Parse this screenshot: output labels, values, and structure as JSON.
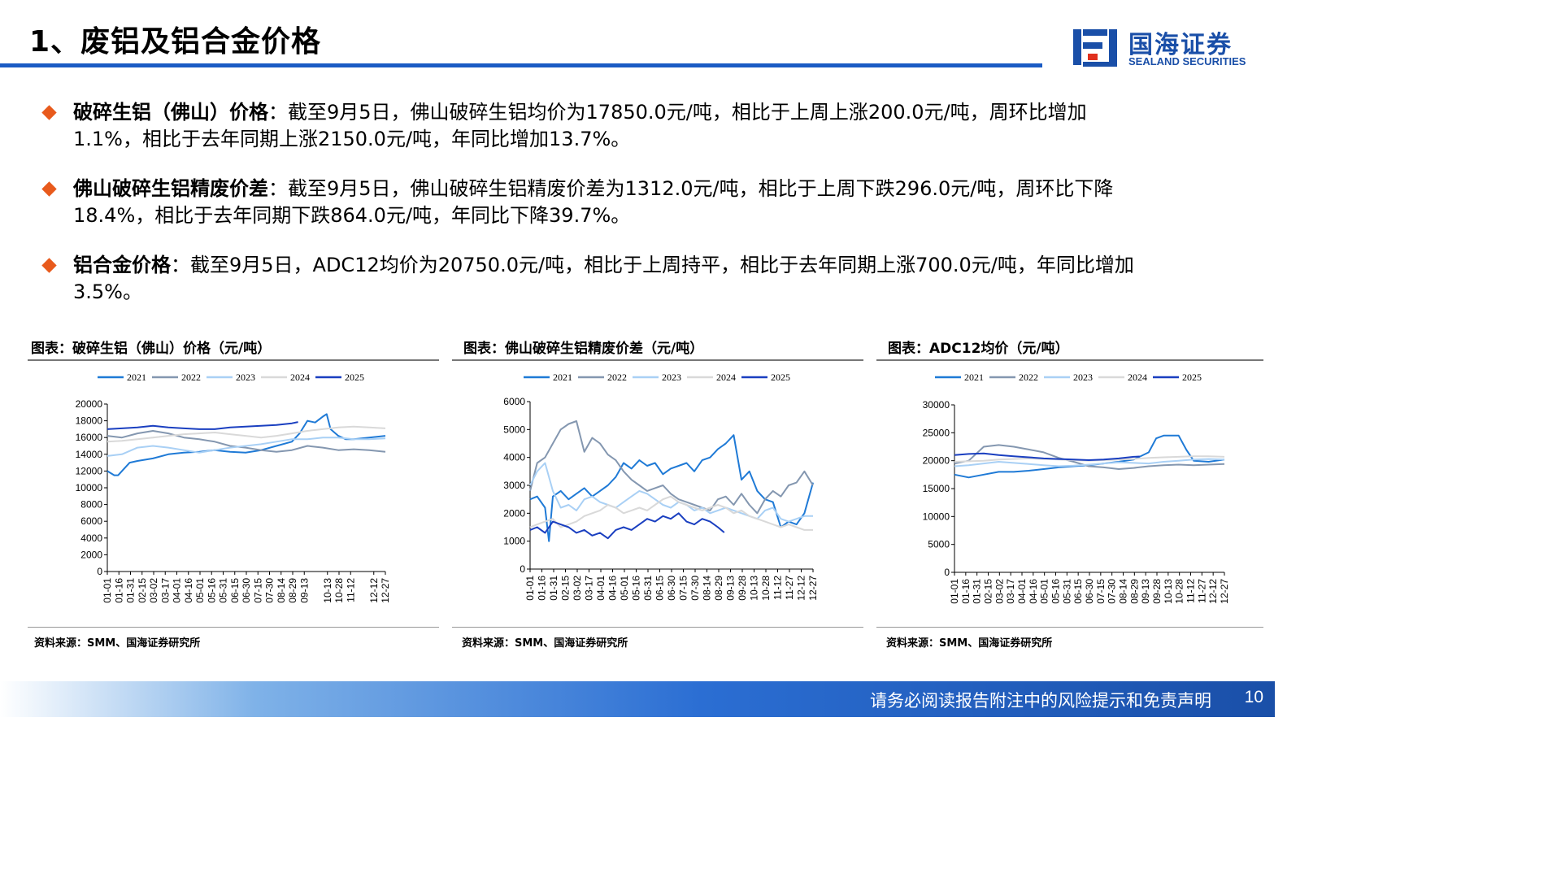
{
  "page": {
    "title": "1、废铝及铝合金价格",
    "logo_cn": "国海证券",
    "logo_en": "SEALAND SECURITIES",
    "footer_text": "请务必阅读报告附注中的风险提示和免责声明",
    "page_number": "10"
  },
  "bullets": [
    {
      "head": "破碎生铝（佛山）价格",
      "body": "：截至9月5日，佛山破碎生铝均价为17850.0元/吨，相比于上周上涨200.0元/吨，周环比增加1.1%，相比于去年同期上涨2150.0元/吨，年同比增加13.7%。"
    },
    {
      "head": "佛山破碎生铝精废价差",
      "body": "：截至9月5日，佛山破碎生铝精废价差为1312.0元/吨，相比于上周下跌296.0元/吨，周环比下降18.4%，相比于去年同期下跌864.0元/吨，年同比下降39.7%。"
    },
    {
      "head": "铝合金价格",
      "body": "：截至9月5日，ADC12均价为20750.0元/吨，相比于上周持平，相比于去年同期上涨700.0元/吨，年同比增加3.5%。"
    }
  ],
  "colors": {
    "2021": "#1f7ad6",
    "2022": "#8497b0",
    "2023": "#a9d0f5",
    "2024": "#d9d9d9",
    "2025": "#1a3fc0"
  },
  "x_ticks": [
    "01-01",
    "01-16",
    "01-31",
    "02-15",
    "03-02",
    "03-17",
    "04-01",
    "04-16",
    "05-01",
    "05-16",
    "05-31",
    "06-15",
    "06-30",
    "07-15",
    "07-30",
    "08-14",
    "08-29",
    "09-13",
    "09-28",
    "10-13",
    "10-28",
    "11-12",
    "11-27",
    "12-12",
    "12-27"
  ],
  "chart_data": [
    {
      "type": "line",
      "title": "图表：破碎生铝（佛山）价格（元/吨）",
      "source": "资料来源：SMM、国海证券研究所",
      "ylim": [
        0,
        20000
      ],
      "yticks": [
        "0",
        "2000",
        "4000",
        "6000",
        "8000",
        "10000",
        "12000",
        "14000",
        "16000",
        "18000",
        "20000"
      ],
      "x_tick_set": [
        "01-01",
        "01-16",
        "01-31",
        "02-15",
        "03-02",
        "03-17",
        "04-01",
        "04-16",
        "05-01",
        "05-16",
        "05-31",
        "06-15",
        "06-30",
        "07-15",
        "07-30",
        "08-14",
        "08-29",
        "09-13",
        "10-13",
        "10-28",
        "11-12",
        "12-12",
        "12-27"
      ],
      "x_domain": [
        1,
        361
      ],
      "series": [
        {
          "name": "2021",
          "x": [
            1,
            10,
            15,
            30,
            40,
            60,
            80,
            100,
            120,
            140,
            160,
            180,
            200,
            220,
            240,
            250,
            260,
            270,
            280,
            285,
            290,
            300,
            310,
            320,
            340,
            361
          ],
          "y": [
            12000,
            11500,
            11500,
            13000,
            13200,
            13500,
            14000,
            14200,
            14300,
            14500,
            14300,
            14200,
            14500,
            15000,
            15500,
            16500,
            18000,
            17800,
            18500,
            18800,
            17000,
            16200,
            15800,
            15800,
            16000,
            16200
          ]
        },
        {
          "name": "2022",
          "x": [
            1,
            20,
            40,
            60,
            80,
            100,
            120,
            140,
            160,
            180,
            200,
            220,
            240,
            260,
            280,
            300,
            320,
            340,
            361
          ],
          "y": [
            16200,
            16000,
            16500,
            16800,
            16500,
            16000,
            15800,
            15500,
            15000,
            14800,
            14500,
            14300,
            14500,
            15000,
            14800,
            14500,
            14600,
            14500,
            14300
          ]
        },
        {
          "name": "2023",
          "x": [
            1,
            20,
            40,
            60,
            80,
            100,
            120,
            140,
            160,
            180,
            200,
            220,
            240,
            260,
            280,
            300,
            320,
            340,
            361
          ],
          "y": [
            13800,
            14000,
            14800,
            15000,
            14800,
            14500,
            14200,
            14500,
            14800,
            15000,
            15200,
            15500,
            15800,
            15800,
            16000,
            16000,
            15800,
            15800,
            15900
          ]
        },
        {
          "name": "2024",
          "x": [
            1,
            20,
            40,
            60,
            80,
            100,
            120,
            140,
            160,
            180,
            200,
            220,
            240,
            260,
            280,
            300,
            320,
            340,
            361
          ],
          "y": [
            15500,
            15600,
            15800,
            16000,
            16200,
            16400,
            16500,
            16600,
            16400,
            16200,
            16000,
            16200,
            16500,
            16800,
            17000,
            17200,
            17300,
            17200,
            17100
          ]
        },
        {
          "name": "2025",
          "x": [
            1,
            20,
            40,
            60,
            80,
            100,
            120,
            140,
            160,
            180,
            200,
            220,
            240,
            248
          ],
          "y": [
            17000,
            17100,
            17200,
            17400,
            17200,
            17100,
            17000,
            17000,
            17200,
            17300,
            17400,
            17500,
            17700,
            17850
          ]
        }
      ]
    },
    {
      "type": "line",
      "title": "图表：佛山破碎生铝精废价差（元/吨）",
      "source": "资料来源：SMM、国海证券研究所",
      "ylim": [
        0,
        6000
      ],
      "yticks": [
        "0",
        "1000",
        "2000",
        "3000",
        "4000",
        "5000",
        "6000"
      ],
      "x_tick_set": [
        "01-01",
        "01-16",
        "01-31",
        "02-15",
        "03-02",
        "03-17",
        "04-01",
        "04-16",
        "05-01",
        "05-16",
        "05-31",
        "06-15",
        "06-30",
        "07-15",
        "07-30",
        "08-14",
        "08-29",
        "09-13",
        "09-28",
        "10-13",
        "10-28",
        "11-12",
        "11-27",
        "12-12",
        "12-27"
      ],
      "x_domain": [
        1,
        361
      ],
      "series": [
        {
          "name": "2021",
          "x": [
            1,
            10,
            20,
            25,
            30,
            40,
            50,
            60,
            70,
            80,
            90,
            100,
            110,
            120,
            130,
            140,
            150,
            160,
            170,
            180,
            190,
            200,
            210,
            220,
            230,
            240,
            250,
            260,
            270,
            280,
            290,
            300,
            310,
            320,
            330,
            340,
            350,
            361
          ],
          "y": [
            2500,
            2600,
            2200,
            1000,
            2600,
            2800,
            2500,
            2700,
            2900,
            2600,
            2800,
            3000,
            3300,
            3800,
            3600,
            3900,
            3700,
            3800,
            3400,
            3600,
            3700,
            3800,
            3500,
            3900,
            4000,
            4300,
            4500,
            4800,
            3200,
            3500,
            2800,
            2500,
            2400,
            1500,
            1700,
            1600,
            2000,
            3100
          ]
        },
        {
          "name": "2022",
          "x": [
            1,
            10,
            20,
            30,
            40,
            50,
            60,
            70,
            80,
            90,
            100,
            110,
            120,
            130,
            140,
            150,
            160,
            170,
            180,
            190,
            200,
            210,
            220,
            230,
            240,
            250,
            260,
            270,
            280,
            290,
            300,
            310,
            320,
            330,
            340,
            350,
            361
          ],
          "y": [
            2800,
            3800,
            4000,
            4500,
            5000,
            5200,
            5300,
            4200,
            4700,
            4500,
            4100,
            3900,
            3500,
            3200,
            3000,
            2800,
            2900,
            3000,
            2700,
            2500,
            2400,
            2300,
            2200,
            2100,
            2500,
            2600,
            2300,
            2700,
            2300,
            2000,
            2500,
            2800,
            2600,
            3000,
            3100,
            3500,
            3000
          ]
        },
        {
          "name": "2023",
          "x": [
            1,
            10,
            20,
            30,
            40,
            50,
            60,
            70,
            80,
            90,
            100,
            110,
            120,
            130,
            140,
            150,
            160,
            170,
            180,
            190,
            200,
            210,
            220,
            230,
            240,
            250,
            260,
            270,
            280,
            290,
            300,
            310,
            320,
            330,
            340,
            350,
            361
          ],
          "y": [
            3000,
            3500,
            3800,
            2800,
            2200,
            2300,
            2100,
            2500,
            2600,
            2400,
            2300,
            2200,
            2400,
            2600,
            2800,
            2700,
            2500,
            2300,
            2200,
            2400,
            2300,
            2100,
            2200,
            2000,
            2100,
            2200,
            2100,
            2000,
            1900,
            1800,
            2100,
            2200,
            1800,
            1700,
            1800,
            1900,
            1900
          ]
        },
        {
          "name": "2024",
          "x": [
            1,
            10,
            20,
            30,
            40,
            50,
            60,
            70,
            80,
            90,
            100,
            110,
            120,
            130,
            140,
            150,
            160,
            170,
            180,
            190,
            200,
            210,
            220,
            230,
            240,
            250,
            260,
            270,
            280,
            290,
            300,
            310,
            320,
            330,
            340,
            350,
            361
          ],
          "y": [
            1500,
            1600,
            1700,
            1800,
            1500,
            1600,
            1700,
            1900,
            2000,
            2100,
            2300,
            2200,
            2000,
            2100,
            2200,
            2100,
            2300,
            2500,
            2600,
            2400,
            2300,
            2200,
            2100,
            2200,
            2300,
            2200,
            2000,
            2100,
            1900,
            1800,
            1700,
            1600,
            1500,
            1600,
            1500,
            1400,
            1400
          ]
        },
        {
          "name": "2025",
          "x": [
            1,
            10,
            20,
            30,
            40,
            50,
            60,
            70,
            80,
            90,
            100,
            110,
            120,
            130,
            140,
            150,
            160,
            170,
            180,
            190,
            200,
            210,
            220,
            230,
            240,
            248
          ],
          "y": [
            1400,
            1500,
            1300,
            1700,
            1600,
            1500,
            1300,
            1400,
            1200,
            1300,
            1100,
            1400,
            1500,
            1400,
            1600,
            1800,
            1700,
            1900,
            1800,
            2000,
            1700,
            1600,
            1800,
            1700,
            1500,
            1312
          ]
        }
      ]
    },
    {
      "type": "line",
      "title": "图表：ADC12均价（元/吨）",
      "source": "资料来源：SMM、国海证券研究所",
      "ylim": [
        0,
        30000
      ],
      "yticks": [
        "0",
        "5000",
        "10000",
        "15000",
        "20000",
        "25000",
        "30000"
      ],
      "x_tick_set": [
        "01-01",
        "01-16",
        "01-31",
        "02-15",
        "03-02",
        "03-17",
        "04-01",
        "04-16",
        "05-01",
        "05-16",
        "05-31",
        "06-15",
        "06-30",
        "07-15",
        "07-30",
        "08-14",
        "08-29",
        "09-13",
        "09-28",
        "10-13",
        "10-28",
        "11-12",
        "11-27",
        "12-12",
        "12-27"
      ],
      "x_domain": [
        1,
        361
      ],
      "series": [
        {
          "name": "2021",
          "x": [
            1,
            20,
            40,
            60,
            80,
            100,
            120,
            140,
            160,
            180,
            200,
            220,
            240,
            260,
            270,
            280,
            300,
            310,
            320,
            340,
            361
          ],
          "y": [
            17500,
            17000,
            17500,
            18000,
            18000,
            18200,
            18500,
            18800,
            19000,
            19200,
            19500,
            19800,
            20200,
            21500,
            24000,
            24500,
            24500,
            22000,
            20000,
            19800,
            20200
          ]
        },
        {
          "name": "2022",
          "x": [
            1,
            20,
            40,
            60,
            80,
            100,
            120,
            140,
            160,
            180,
            200,
            220,
            240,
            260,
            280,
            300,
            320,
            340,
            361
          ],
          "y": [
            19500,
            20000,
            22500,
            22800,
            22500,
            22000,
            21500,
            20500,
            19800,
            19000,
            18800,
            18500,
            18700,
            19000,
            19200,
            19300,
            19200,
            19300,
            19400
          ]
        },
        {
          "name": "2023",
          "x": [
            1,
            20,
            40,
            60,
            80,
            100,
            120,
            140,
            160,
            180,
            200,
            220,
            240,
            260,
            280,
            300,
            320,
            340,
            361
          ],
          "y": [
            19000,
            19200,
            19500,
            19800,
            19600,
            19400,
            19200,
            19000,
            19100,
            19300,
            19500,
            19700,
            19600,
            19500,
            19800,
            20000,
            20200,
            20300,
            20200
          ]
        },
        {
          "name": "2024",
          "x": [
            1,
            20,
            40,
            60,
            80,
            100,
            120,
            140,
            160,
            180,
            200,
            220,
            240,
            260,
            280,
            300,
            320,
            340,
            361
          ],
          "y": [
            19800,
            19900,
            20000,
            20200,
            20300,
            20400,
            20300,
            20200,
            20100,
            20000,
            20100,
            20200,
            20300,
            20500,
            20600,
            20700,
            20800,
            20800,
            20700
          ]
        },
        {
          "name": "2025",
          "x": [
            1,
            20,
            40,
            60,
            80,
            100,
            120,
            140,
            160,
            180,
            200,
            220,
            240,
            248
          ],
          "y": [
            21000,
            21200,
            21300,
            21000,
            20800,
            20600,
            20400,
            20300,
            20200,
            20100,
            20200,
            20400,
            20700,
            20750
          ]
        }
      ]
    }
  ]
}
